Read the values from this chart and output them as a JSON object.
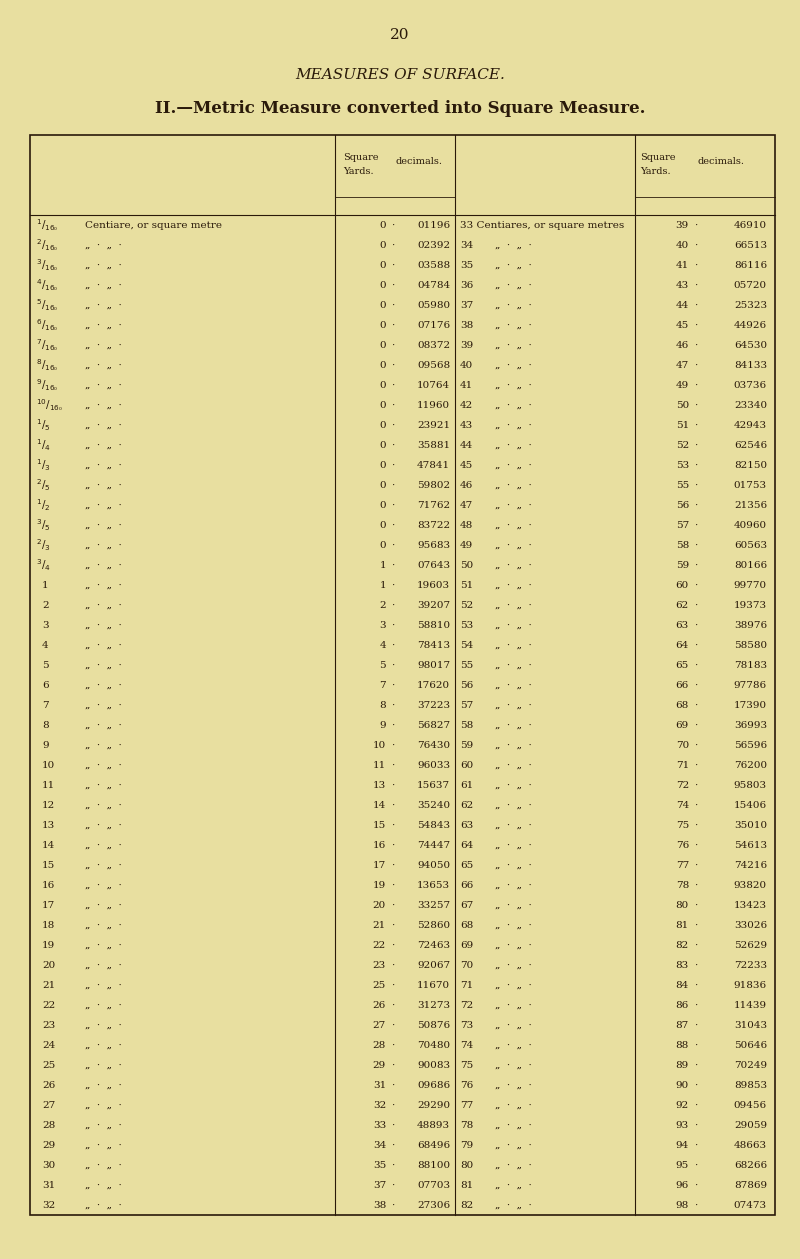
{
  "page_number": "20",
  "title1": "MEASURES OF SURFACE.",
  "title2": "II.—Metric Measure converted into Square Measure.",
  "bg_color": "#e8dfa0",
  "text_color": "#2a1a0a",
  "fraction_labels": [
    "¹₁₆₀",
    "¹²₆₀",
    "¹³₆₀",
    "¹₄₆₀",
    "¹₅₆₀",
    "¹₆₆₀",
    "¹₇₆₀",
    "¹₈₆₀",
    "¹₉₆₀",
    "¹¹₀₆₀",
    "¹₅",
    "¹₄",
    "¹₃",
    "²₅",
    "¹₂",
    "³₅",
    "²₃",
    "³₄",
    "1",
    "2",
    "3",
    "4",
    "5",
    "6",
    "7",
    "8",
    "9",
    "10",
    "11",
    "12",
    "13",
    "14",
    "15",
    "16",
    "17",
    "18",
    "19",
    "20",
    "21",
    "22",
    "23",
    "24",
    "25",
    "26",
    "27",
    "28",
    "29",
    "30",
    "31",
    "32"
  ],
  "left_desc_first": "Centiare, or square metre",
  "left_desc_rest": "„  ·  „  ·",
  "col2_data": [
    [
      "0",
      "01196"
    ],
    [
      "0",
      "02392"
    ],
    [
      "0",
      "03588"
    ],
    [
      "0",
      "04784"
    ],
    [
      "0",
      "05980"
    ],
    [
      "0",
      "07176"
    ],
    [
      "0",
      "08372"
    ],
    [
      "0",
      "09568"
    ],
    [
      "0",
      "10764"
    ],
    [
      "0",
      "11960"
    ],
    [
      "0",
      "23921"
    ],
    [
      "0",
      "35881"
    ],
    [
      "0",
      "47841"
    ],
    [
      "0",
      "59802"
    ],
    [
      "0",
      "71762"
    ],
    [
      "0",
      "83722"
    ],
    [
      "0",
      "95683"
    ],
    [
      "1",
      "07643"
    ],
    [
      "1",
      "19603"
    ],
    [
      "2",
      "39207"
    ],
    [
      "3",
      "58810"
    ],
    [
      "4",
      "78413"
    ],
    [
      "5",
      "98017"
    ],
    [
      "7",
      "17620"
    ],
    [
      "8",
      "37223"
    ],
    [
      "9",
      "56827"
    ],
    [
      "10",
      "76430"
    ],
    [
      "11",
      "96033"
    ],
    [
      "13",
      "15637"
    ],
    [
      "14",
      "35240"
    ],
    [
      "15",
      "54843"
    ],
    [
      "16",
      "74447"
    ],
    [
      "17",
      "94050"
    ],
    [
      "19",
      "13653"
    ],
    [
      "20",
      "33257"
    ],
    [
      "21",
      "52860"
    ],
    [
      "22",
      "72463"
    ],
    [
      "23",
      "92067"
    ],
    [
      "25",
      "11670"
    ],
    [
      "26",
      "31273"
    ],
    [
      "27",
      "50876"
    ],
    [
      "28",
      "70480"
    ],
    [
      "29",
      "90083"
    ],
    [
      "31",
      "09686"
    ],
    [
      "32",
      "29290"
    ],
    [
      "33",
      "48893"
    ],
    [
      "34",
      "68496"
    ],
    [
      "35",
      "88100"
    ],
    [
      "37",
      "07703"
    ],
    [
      "38",
      "27306"
    ]
  ],
  "col3_header": "33 Centiares, or square metres",
  "col3_data": [
    [
      "33",
      "46910"
    ],
    [
      "34",
      "66513"
    ],
    [
      "35",
      "86116"
    ],
    [
      "36",
      "05720"
    ],
    [
      "37",
      "25323"
    ],
    [
      "38",
      "44926"
    ],
    [
      "39",
      "64530"
    ],
    [
      "40",
      "84133"
    ],
    [
      "41",
      "03736"
    ],
    [
      "42",
      "23340"
    ],
    [
      "43",
      "42943"
    ],
    [
      "44",
      "62546"
    ],
    [
      "45",
      "82150"
    ],
    [
      "46",
      "01753"
    ],
    [
      "47",
      "21356"
    ],
    [
      "48",
      "40960"
    ],
    [
      "49",
      "60563"
    ],
    [
      "50",
      "80166"
    ],
    [
      "51",
      "99770"
    ],
    [
      "52",
      "19373"
    ],
    [
      "53",
      "38976"
    ],
    [
      "54",
      "58580"
    ],
    [
      "55",
      "78183"
    ],
    [
      "56",
      "97786"
    ],
    [
      "57",
      "17390"
    ],
    [
      "58",
      "36993"
    ],
    [
      "59",
      "56596"
    ],
    [
      "60",
      "76200"
    ],
    [
      "61",
      "95803"
    ],
    [
      "62",
      "15406"
    ],
    [
      "63",
      "35010"
    ],
    [
      "64",
      "54613"
    ],
    [
      "65",
      "74216"
    ],
    [
      "66",
      "93820"
    ],
    [
      "67",
      "13423"
    ],
    [
      "68",
      "33026"
    ],
    [
      "69",
      "52629"
    ],
    [
      "70",
      "72233"
    ],
    [
      "71",
      "91836"
    ],
    [
      "72",
      "11439"
    ],
    [
      "73",
      "31043"
    ],
    [
      "74",
      "50646"
    ],
    [
      "75",
      "70249"
    ],
    [
      "76",
      "89853"
    ],
    [
      "77",
      "09456"
    ],
    [
      "78",
      "29059"
    ],
    [
      "79",
      "48663"
    ],
    [
      "80",
      "68266"
    ],
    [
      "81",
      "87869"
    ],
    [
      "82",
      "07473"
    ]
  ],
  "col3_desc": "„  ·  „  ·",
  "col4_data": [
    [
      "39",
      "46910"
    ],
    [
      "40",
      "66513"
    ],
    [
      "41",
      "86116"
    ],
    [
      "43",
      "05720"
    ],
    [
      "44",
      "25323"
    ],
    [
      "45",
      "44926"
    ],
    [
      "46",
      "64530"
    ],
    [
      "47",
      "84133"
    ],
    [
      "49",
      "03736"
    ],
    [
      "50",
      "23340"
    ],
    [
      "51",
      "42943"
    ],
    [
      "52",
      "62546"
    ],
    [
      "53",
      "82150"
    ],
    [
      "55",
      "01753"
    ],
    [
      "56",
      "21356"
    ],
    [
      "57",
      "40960"
    ],
    [
      "58",
      "60563"
    ],
    [
      "59",
      "80166"
    ],
    [
      "60",
      "99770"
    ],
    [
      "62",
      "19373"
    ],
    [
      "63",
      "38976"
    ],
    [
      "64",
      "58580"
    ],
    [
      "65",
      "78183"
    ],
    [
      "66",
      "97786"
    ],
    [
      "68",
      "17390"
    ],
    [
      "69",
      "36993"
    ],
    [
      "70",
      "56596"
    ],
    [
      "71",
      "76200"
    ],
    [
      "72",
      "95803"
    ],
    [
      "74",
      "15406"
    ],
    [
      "75",
      "35010"
    ],
    [
      "76",
      "54613"
    ],
    [
      "77",
      "74216"
    ],
    [
      "78",
      "93820"
    ],
    [
      "80",
      "13423"
    ],
    [
      "81",
      "33026"
    ],
    [
      "82",
      "52629"
    ],
    [
      "83",
      "72233"
    ],
    [
      "84",
      "91836"
    ],
    [
      "86",
      "11439"
    ],
    [
      "87",
      "31043"
    ],
    [
      "88",
      "50646"
    ],
    [
      "89",
      "70249"
    ],
    [
      "90",
      "89853"
    ],
    [
      "92",
      "09456"
    ],
    [
      "93",
      "29059"
    ],
    [
      "94",
      "48663"
    ],
    [
      "95",
      "68266"
    ],
    [
      "96",
      "87869"
    ],
    [
      "98",
      "07473"
    ]
  ]
}
